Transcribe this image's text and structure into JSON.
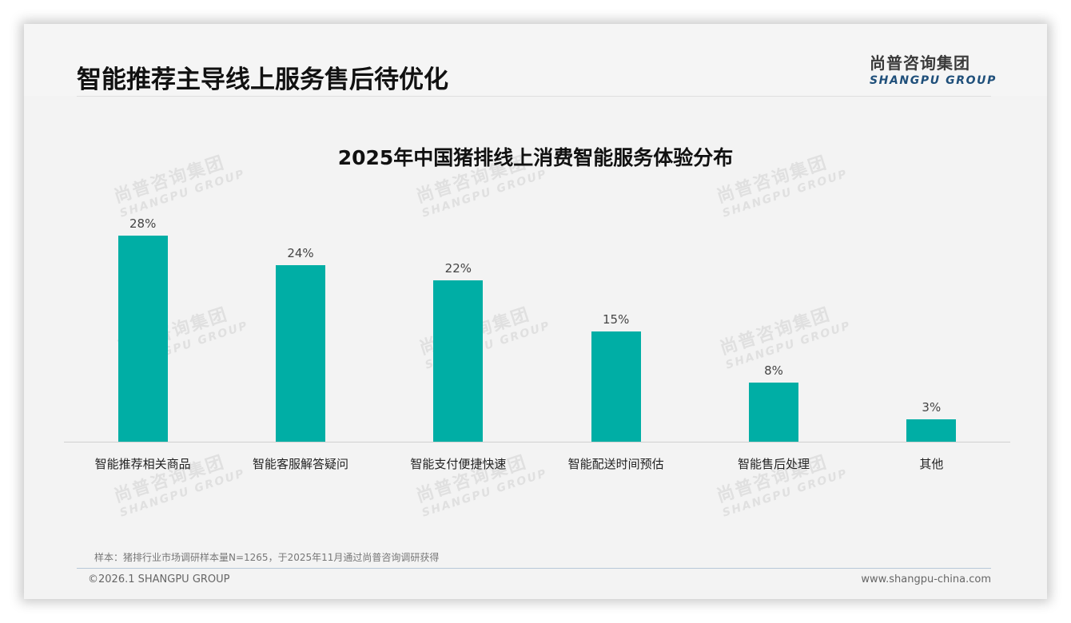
{
  "header": {
    "title": "智能推荐主导线上服务售后待优化",
    "logo_cn": "尚普咨询集团",
    "logo_en": "SHANGPU GROUP"
  },
  "watermark": {
    "cn": "尚普咨询集团",
    "en": "SHANGPU GROUP"
  },
  "chart_data": {
    "type": "bar",
    "title": "2025年中国猪排线上消费智能服务体验分布",
    "categories": [
      "智能推荐相关商品",
      "智能客服解答疑问",
      "智能支付便捷快速",
      "智能配送时间预估",
      "智能售后处理",
      "其他"
    ],
    "values": [
      28,
      24,
      22,
      15,
      8,
      3
    ],
    "value_labels": [
      "28%",
      "24%",
      "22%",
      "15%",
      "8%",
      "3%"
    ],
    "unit": "%",
    "xlabel": "",
    "ylabel": "",
    "ylim": [
      0,
      30
    ],
    "grid": false,
    "legend": "none",
    "bar_color": "#00aea5"
  },
  "footer": {
    "note": "样本：猪排行业市场调研样本量N=1265，于2025年11月通过尚普咨询调研获得",
    "copyright": "©2026.1 SHANGPU GROUP",
    "website": "www.shangpu-china.com"
  }
}
